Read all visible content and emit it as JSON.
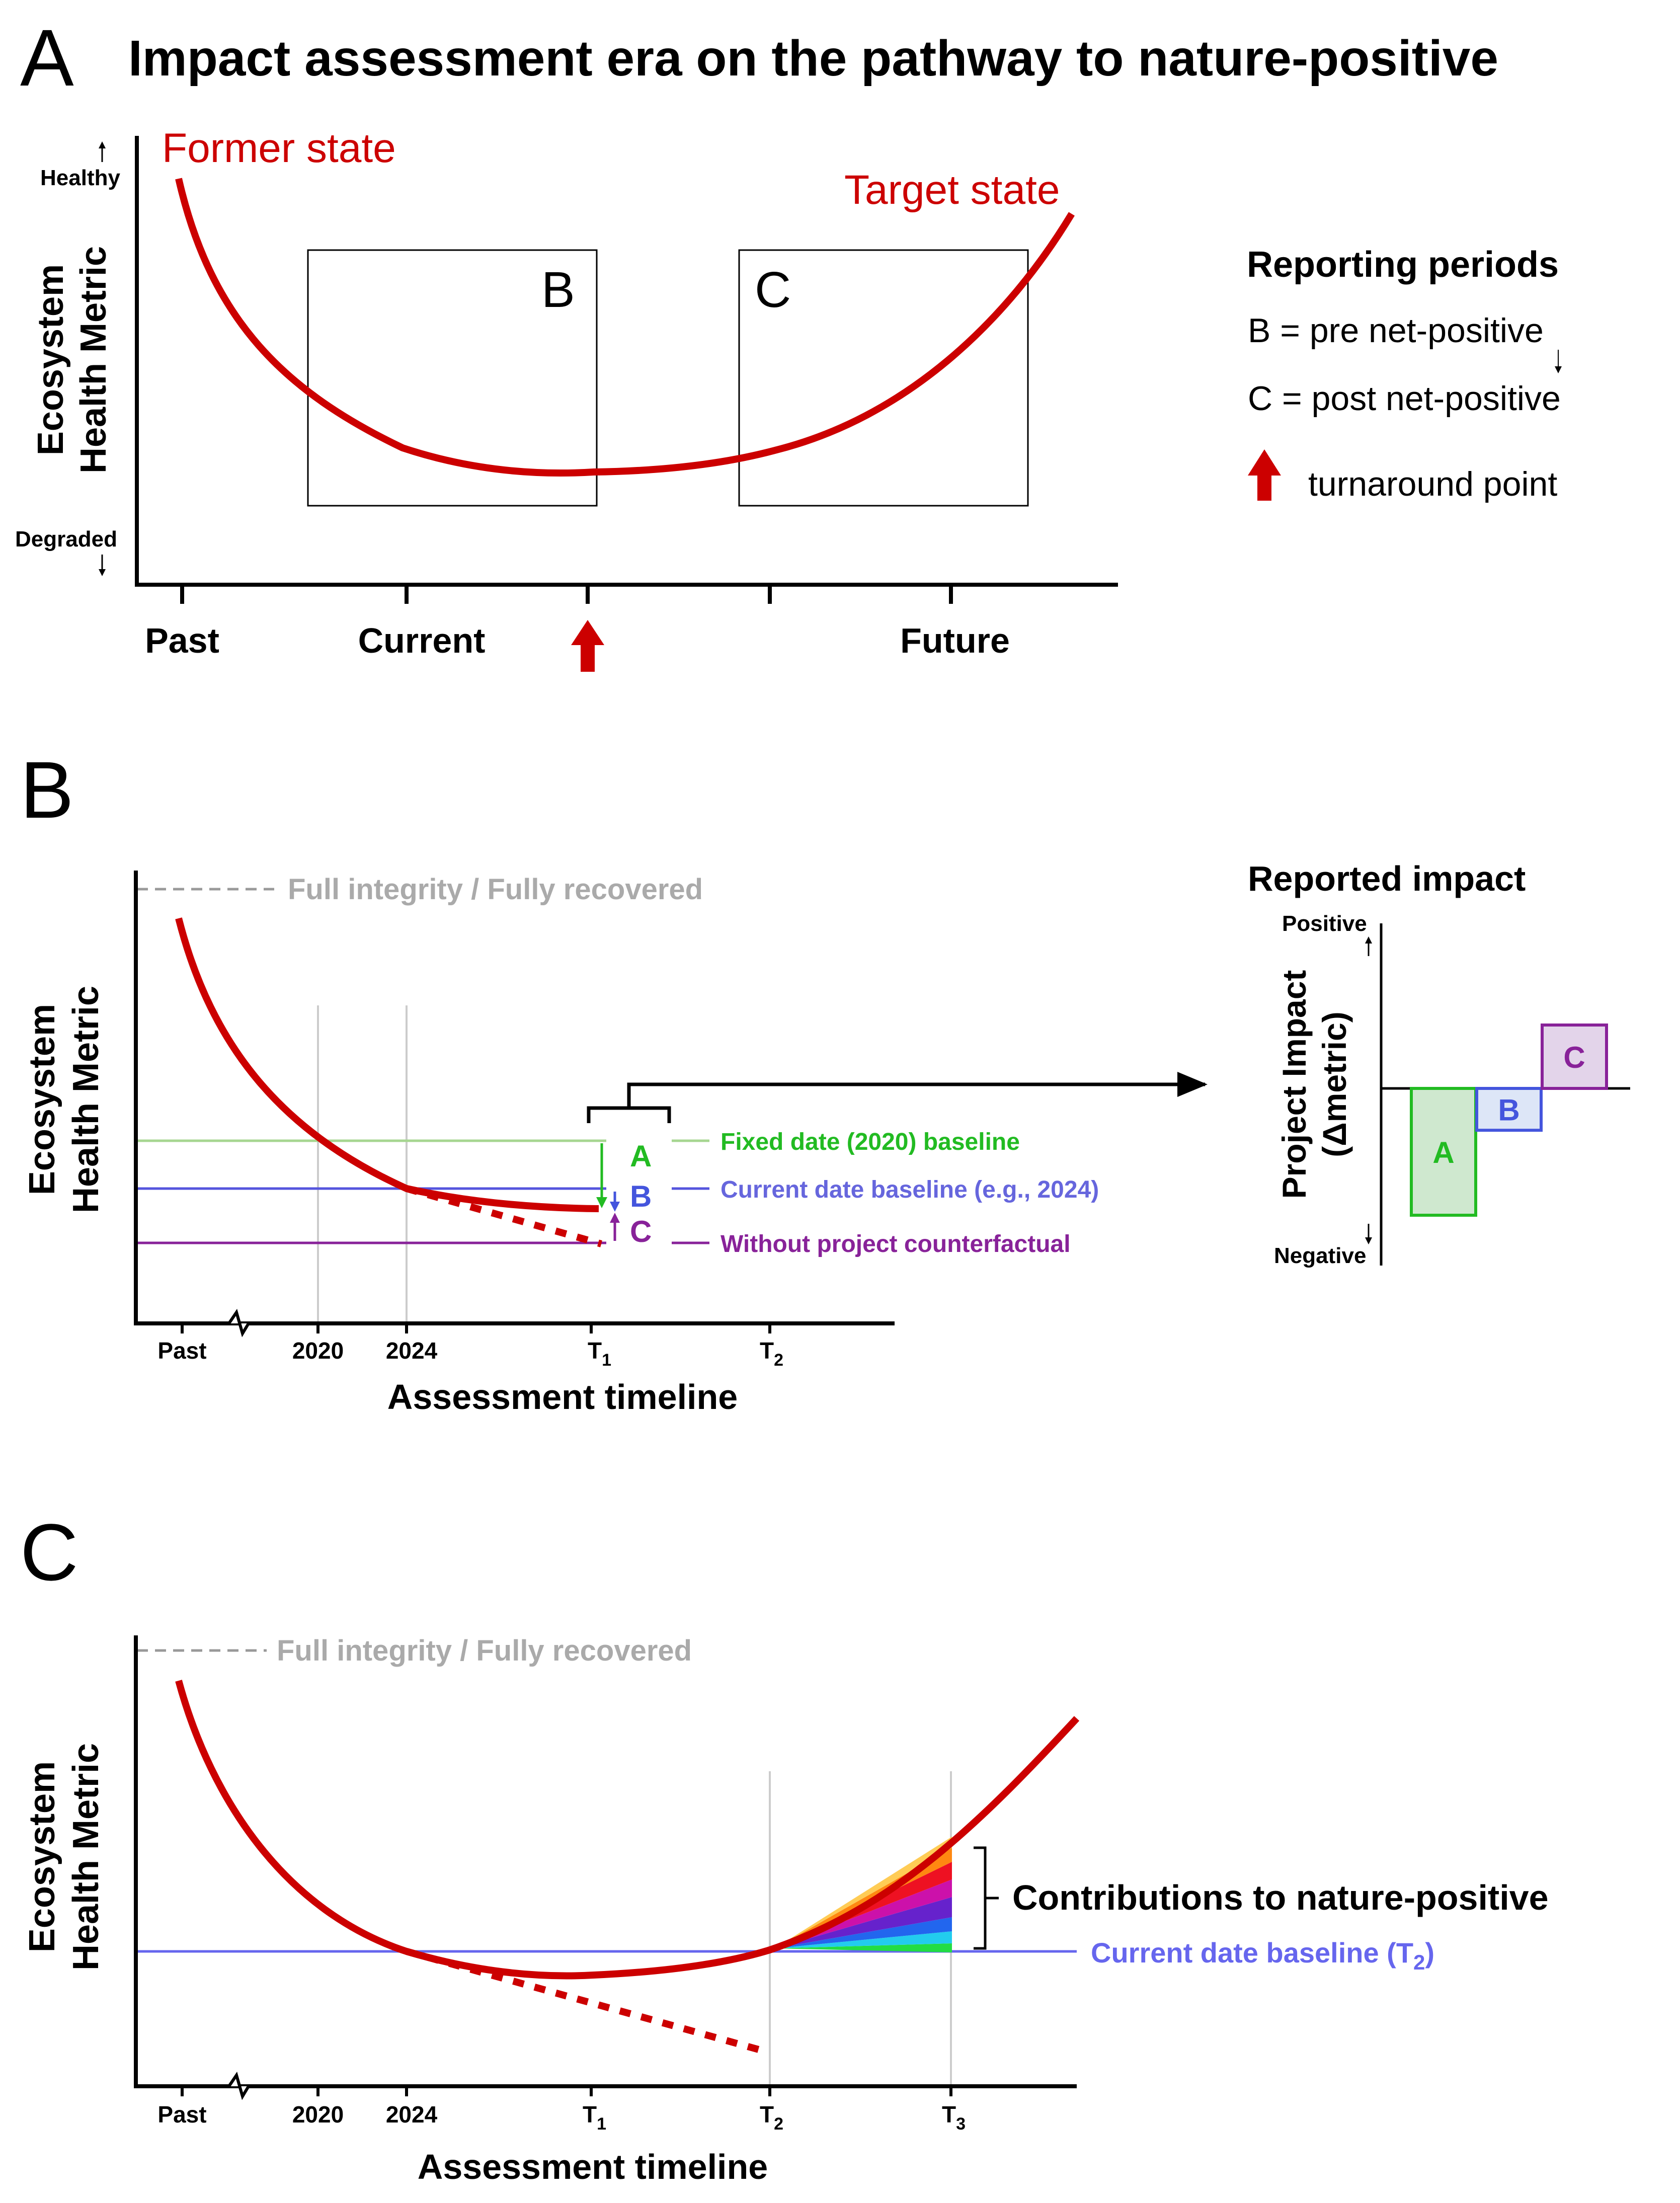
{
  "panel_a": {
    "letter": "A",
    "title": "Impact assessment era on the pathway to nature-positive",
    "y_label_line1": "Ecosystem",
    "y_label_line2": "Health Metric",
    "y_top": "Healthy",
    "y_bottom": "Degraded",
    "curve_start_label": "Former state",
    "curve_end_label": "Target state",
    "box_b": "B",
    "box_c": "C",
    "x_ticks": [
      "Past",
      "Current",
      "Future"
    ],
    "legend_title": "Reporting periods",
    "legend_b": "B = pre net-positive",
    "legend_c": "C = post net-positive",
    "legend_arrow": "turnaround point"
  },
  "panel_b": {
    "letter": "B",
    "full_integrity": "Full integrity / Fully recovered",
    "y_label_line1": "Ecosystem",
    "y_label_line2": "Health Metric",
    "x_title": "Assessment timeline",
    "x_ticks": {
      "past": "Past",
      "y2020": "2020",
      "y2024": "2024",
      "t": "T",
      "t1_sub": "1",
      "t2_sub": "2"
    },
    "baseline_fixed": "Fixed date (2020) baseline",
    "baseline_current": "Current date baseline (e.g., 2024)",
    "baseline_counterfactual": "Without project counterfactual",
    "diff_a": "A",
    "diff_b": "B",
    "diff_c": "C",
    "reported_title": "Reported impact",
    "bar_y_line1": "Project Impact",
    "bar_y_line2": "(Δmetric)",
    "bar_positive": "Positive",
    "bar_negative": "Negative",
    "bars": [
      {
        "label": "A",
        "value": -1.0,
        "color": "#22bb22",
        "fill": "#cfe8cf"
      },
      {
        "label": "B",
        "value": -0.33,
        "color": "#4455dd",
        "fill": "#dde6f7"
      },
      {
        "label": "C",
        "value": 0.5,
        "color": "#882299",
        "fill": "#e3d4ea"
      }
    ]
  },
  "panel_c": {
    "letter": "C",
    "full_integrity": "Full integrity / Fully recovered",
    "y_label_line1": "Ecosystem",
    "y_label_line2": "Health Metric",
    "x_title": "Assessment timeline",
    "x_ticks": {
      "past": "Past",
      "y2020": "2020",
      "y2024": "2024",
      "t": "T",
      "t1_sub": "1",
      "t2_sub": "2",
      "t3_sub": "3"
    },
    "contributions": "Contributions to nature-positive",
    "baseline_label": "Current date baseline (T",
    "baseline_sub": "2",
    "baseline_close": ")"
  },
  "colors": {
    "curve": "#cc0000",
    "green": "#22bb22",
    "blue": "#4455dd",
    "purple": "#882299",
    "gray": "#aaaaaa",
    "baseline_c": "#6666ee"
  }
}
